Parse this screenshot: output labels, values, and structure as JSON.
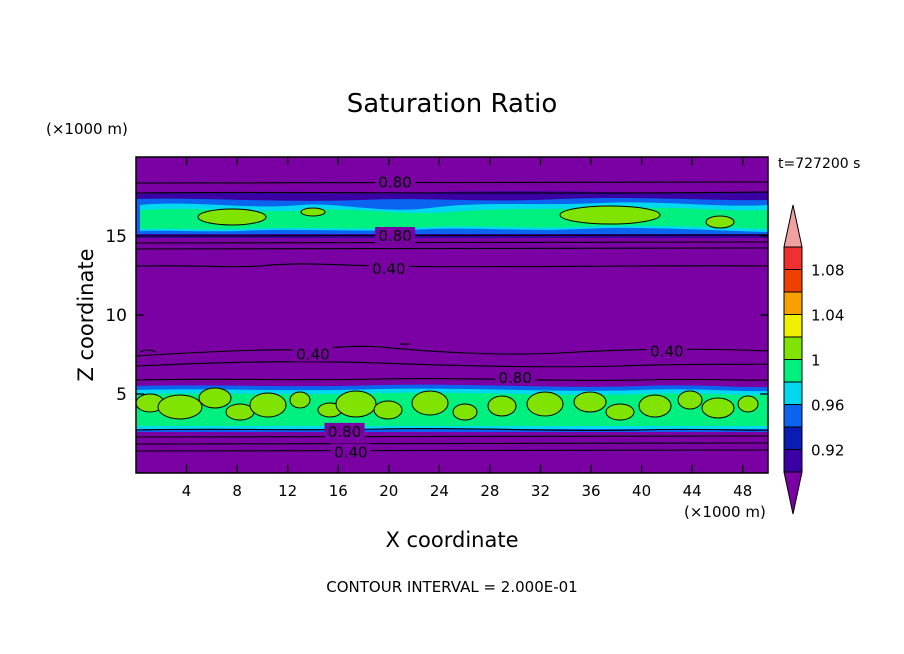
{
  "chart_data": {
    "type": "heatmap",
    "title": "Saturation Ratio",
    "xlabel": "X coordinate",
    "ylabel": "Z coordinate",
    "x_unit": "(×1000 m)",
    "y_unit": "(×1000 m)",
    "time_label": "t=727200 s",
    "footer": "CONTOUR INTERVAL = 2.000E-01",
    "xlim": [
      0,
      50
    ],
    "ylim": [
      0,
      20
    ],
    "x_ticks": [
      4,
      8,
      12,
      16,
      20,
      24,
      28,
      32,
      36,
      40,
      44,
      48
    ],
    "y_ticks": [
      5,
      10,
      15
    ],
    "colorbar": {
      "levels": [
        0.9,
        0.92,
        0.94,
        0.96,
        0.98,
        1.0,
        1.02,
        1.04,
        1.06,
        1.08,
        1.1
      ],
      "labels": [
        "0.92",
        "0.96",
        "1",
        "1.04",
        "1.08"
      ],
      "label_values": [
        0.92,
        0.96,
        1.0,
        1.04,
        1.08
      ],
      "colors": [
        "#7a00a4",
        "#3a00a4",
        "#0a1cb4",
        "#0a64f0",
        "#00d8f0",
        "#00f080",
        "#80e400",
        "#f0f000",
        "#f8a000",
        "#f04000",
        "#f03030",
        "#f0a0a0"
      ],
      "extend": "both"
    },
    "background_color": "#7a00a4",
    "contour_labels": [
      {
        "text": "0.80",
        "x": 20.5,
        "y": 18.4
      },
      {
        "text": "0.80",
        "x": 20.5,
        "y": 15.0
      },
      {
        "text": "0.40",
        "x": 20.0,
        "y": 12.9
      },
      {
        "text": "0.40",
        "x": 14.0,
        "y": 7.5
      },
      {
        "text": "0.40",
        "x": 42.0,
        "y": 7.7
      },
      {
        "text": "0.80",
        "x": 30.0,
        "y": 6.0
      },
      {
        "text": "0.80",
        "x": 16.5,
        "y": 2.6
      },
      {
        "text": "0.40",
        "x": 17.0,
        "y": 1.3
      }
    ]
  }
}
